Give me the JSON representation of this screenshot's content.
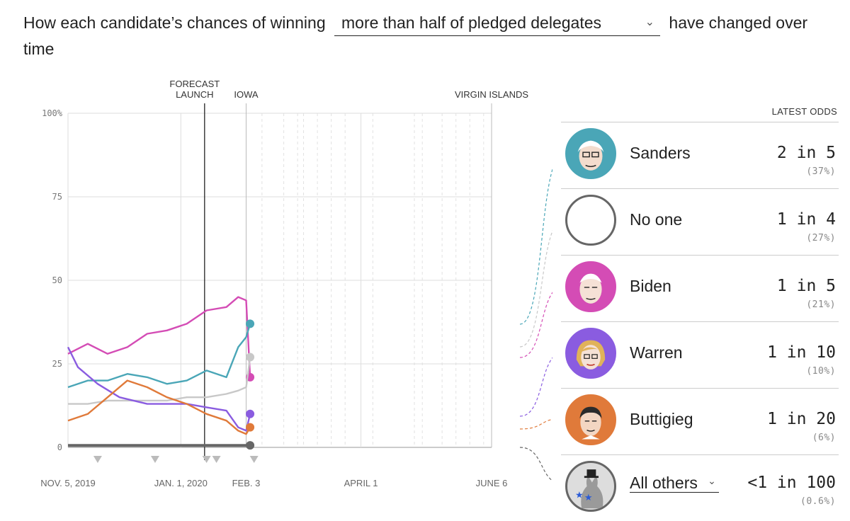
{
  "header": {
    "prefix": "How each candidate’s chances of winning",
    "dropdown_value": "more than half of pledged delegates",
    "suffix": "have changed over time"
  },
  "chart_data": {
    "type": "line",
    "title": "",
    "xlabel": "",
    "ylabel": "",
    "ylim": [
      0,
      100
    ],
    "y_ticks": [
      "0",
      "25",
      "50",
      "75",
      "100%"
    ],
    "x_ticks": [
      {
        "date": "2019-11-05",
        "label": "NOV. 5, 2019"
      },
      {
        "date": "2020-01-01",
        "label": "JAN. 1, 2020"
      },
      {
        "date": "2020-02-03",
        "label": "FEB. 3"
      },
      {
        "date": "2020-04-01",
        "label": "APRIL 1"
      },
      {
        "date": "2020-06-06",
        "label": "JUNE 6"
      }
    ],
    "events": [
      {
        "date": "2020-01-13",
        "label": "FORECAST LAUNCH"
      },
      {
        "date": "2020-02-03",
        "label": "IOWA"
      },
      {
        "date": "2020-06-06",
        "label": "VIRGIN ISLANDS"
      }
    ],
    "debate_dates": [
      "2019-11-20",
      "2019-12-19",
      "2020-01-14",
      "2020-01-19",
      "2020-02-07"
    ],
    "series": [
      {
        "name": "Biden",
        "color": "#d44cb5",
        "x": [
          "2019-11-05",
          "2019-11-15",
          "2019-11-25",
          "2019-12-05",
          "2019-12-15",
          "2019-12-25",
          "2020-01-04",
          "2020-01-14",
          "2020-01-24",
          "2020-01-30",
          "2020-02-03",
          "2020-02-05"
        ],
        "values": [
          28,
          31,
          28,
          30,
          34,
          35,
          37,
          41,
          42,
          45,
          44,
          21
        ]
      },
      {
        "name": "Sanders",
        "color": "#4aa6b7",
        "x": [
          "2019-11-05",
          "2019-11-15",
          "2019-11-25",
          "2019-12-05",
          "2019-12-15",
          "2019-12-25",
          "2020-01-04",
          "2020-01-14",
          "2020-01-24",
          "2020-01-30",
          "2020-02-03",
          "2020-02-05"
        ],
        "values": [
          18,
          20,
          20,
          22,
          21,
          19,
          20,
          23,
          21,
          30,
          33,
          37
        ]
      },
      {
        "name": "No one",
        "color": "#c8c8c8",
        "x": [
          "2019-11-05",
          "2019-11-15",
          "2019-11-25",
          "2019-12-05",
          "2019-12-15",
          "2019-12-25",
          "2020-01-04",
          "2020-01-14",
          "2020-01-24",
          "2020-01-30",
          "2020-02-03",
          "2020-02-05"
        ],
        "values": [
          13,
          13,
          14,
          14,
          14,
          14,
          15,
          15,
          16,
          17,
          18,
          27
        ]
      },
      {
        "name": "Warren",
        "color": "#8a5ce0",
        "x": [
          "2019-11-05",
          "2019-11-10",
          "2019-11-20",
          "2019-12-01",
          "2019-12-15",
          "2019-12-25",
          "2020-01-04",
          "2020-01-14",
          "2020-01-24",
          "2020-01-30",
          "2020-02-03",
          "2020-02-05"
        ],
        "values": [
          30,
          24,
          19,
          15,
          13,
          13,
          13,
          12,
          11,
          6,
          5,
          10
        ]
      },
      {
        "name": "Buttigieg",
        "color": "#e07a3a",
        "x": [
          "2019-11-05",
          "2019-11-15",
          "2019-11-25",
          "2019-12-05",
          "2019-12-15",
          "2019-12-25",
          "2020-01-04",
          "2020-01-14",
          "2020-01-24",
          "2020-01-30",
          "2020-02-03",
          "2020-02-05"
        ],
        "values": [
          8,
          10,
          15,
          20,
          18,
          15,
          13,
          10,
          8,
          5,
          4,
          6
        ]
      },
      {
        "name": "All others",
        "color": "#666666",
        "x": [
          "2019-11-05",
          "2019-12-05",
          "2020-01-05",
          "2020-02-05"
        ],
        "values": [
          0.6,
          0.6,
          0.6,
          0.6
        ]
      }
    ]
  },
  "legend": {
    "header": "LATEST ODDS",
    "rows": [
      {
        "name": "Sanders",
        "odds": "2 in 5",
        "pct": "(37%)",
        "color": "#4aa6b7",
        "icon": "sanders-portrait-icon"
      },
      {
        "name": "No one",
        "odds": "1 in 4",
        "pct": "(27%)",
        "color": "#666666",
        "icon": "empty-circle-icon"
      },
      {
        "name": "Biden",
        "odds": "1 in 5",
        "pct": "(21%)",
        "color": "#d44cb5",
        "icon": "biden-portrait-icon"
      },
      {
        "name": "Warren",
        "odds": "1 in 10",
        "pct": "(10%)",
        "color": "#8a5ce0",
        "icon": "warren-portrait-icon"
      },
      {
        "name": "Buttigieg",
        "odds": "1 in 20",
        "pct": "(6%)",
        "color": "#e07a3a",
        "icon": "buttigieg-portrait-icon"
      },
      {
        "name": "All others",
        "odds": "<1 in 100",
        "pct": "(0.6%)",
        "color": "#666666",
        "icon": "donkey-icon"
      }
    ]
  }
}
